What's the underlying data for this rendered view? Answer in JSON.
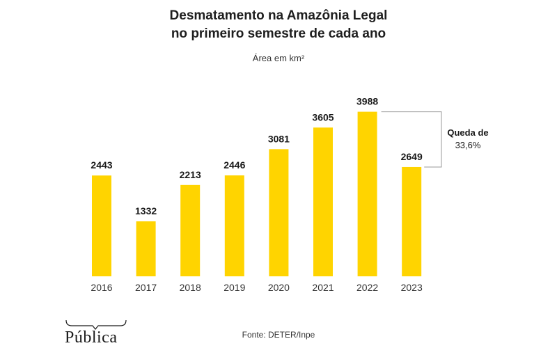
{
  "chart_data": {
    "type": "bar",
    "title_line1": "Desmatamento na Amazônia Legal",
    "title_line2": "no primeiro semestre de cada ano",
    "subtitle": "Área em km²",
    "categories": [
      "2016",
      "2017",
      "2018",
      "2019",
      "2020",
      "2021",
      "2022",
      "2023"
    ],
    "values": [
      2443,
      1332,
      2213,
      2446,
      3081,
      3605,
      3988,
      2649
    ],
    "value_labels": [
      "2443",
      "1332",
      "2213",
      "2446",
      "3081",
      "3605",
      "3988",
      "2649"
    ],
    "ylim": [
      0,
      4200
    ],
    "grid": false,
    "bar_color": "#FFD400",
    "annotation": {
      "line1": "Queda de",
      "line2": "33,6%",
      "from_category": "2022",
      "to_category": "2023"
    },
    "source": "Fonte: DETER/Inpe"
  },
  "logo": {
    "text": "Pública"
  }
}
